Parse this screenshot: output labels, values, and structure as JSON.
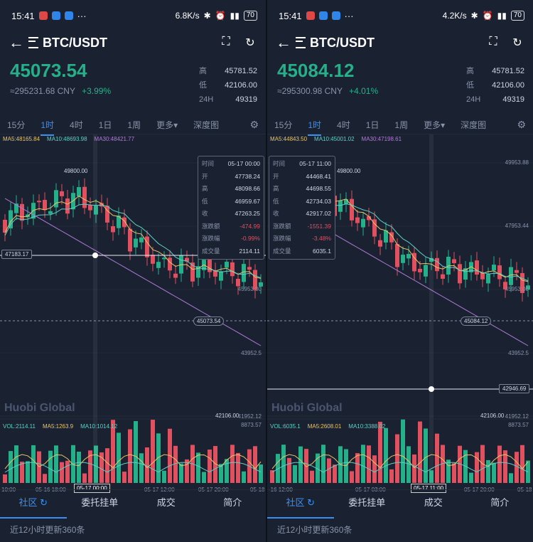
{
  "panels": [
    {
      "status": {
        "time": "15:41",
        "speed": "6.8K/s",
        "battery": "70"
      },
      "pair": "BTC/USDT",
      "price": "45073.54",
      "cny": "≈295231.68 CNY",
      "change": "+3.99%",
      "stats": [
        {
          "k": "高",
          "v": "45781.52"
        },
        {
          "k": "低",
          "v": "42106.00"
        },
        {
          "k": "24H",
          "v": "49319"
        }
      ],
      "tabs": [
        "15分",
        "1时",
        "4时",
        "1日",
        "1周",
        "更多▾",
        "深度图"
      ],
      "ma": {
        "ma5": "MA5:48165.84",
        "ma10": "MA10:48693.98",
        "ma30": "MA30:48421.77"
      },
      "vol": {
        "vol": "VOL:2114.11",
        "ma5": "MA5:1263.9",
        "ma10": "MA10:1014.12"
      },
      "tooltip": [
        {
          "k": "时间",
          "v": "05-17 00:00"
        },
        {
          "k": "开",
          "v": "47738.24"
        },
        {
          "k": "高",
          "v": "48098.66"
        },
        {
          "k": "低",
          "v": "46959.67"
        },
        {
          "k": "收",
          "v": "47263.25"
        },
        {
          "k": "涨跌额",
          "v": "-474.99"
        },
        {
          "k": "涨跌幅",
          "v": "-0.99%"
        },
        {
          "k": "成交量",
          "v": "2114.11"
        }
      ],
      "high_label": "49800.00",
      "low_label": "42106.00",
      "cross_price": "47183.17",
      "current_price": "45073.54",
      "yticks": [
        "45953.00",
        "43952.5",
        "41952.12"
      ],
      "vol_max": "8873.57",
      "xticks": [
        "10:00",
        "05-16 18:00",
        "05-17 12:00",
        "05-17 20:00",
        "05-18"
      ],
      "x_highlight": "05-17 00:00",
      "watermark": "Huobi Global",
      "nav": [
        "社区 ↻",
        "委托挂单",
        "成交",
        "简介"
      ],
      "footer": "近12小时更新360条"
    },
    {
      "status": {
        "time": "15:41",
        "speed": "4.2K/s",
        "battery": "70"
      },
      "pair": "BTC/USDT",
      "price": "45084.12",
      "cny": "≈295300.98 CNY",
      "change": "+4.01%",
      "stats": [
        {
          "k": "高",
          "v": "45781.52"
        },
        {
          "k": "低",
          "v": "42106.00"
        },
        {
          "k": "24H",
          "v": "49319"
        }
      ],
      "tabs": [
        "15分",
        "1时",
        "4时",
        "1日",
        "1周",
        "更多▾",
        "深度图"
      ],
      "ma": {
        "ma5": "MA5:44843.50",
        "ma10": "MA10:45001.02",
        "ma30": "MA30:47198.61"
      },
      "vol": {
        "vol": "VOL:6035.1",
        "ma5": "MA5:2608.01",
        "ma10": "MA10:3388.02"
      },
      "tooltip": [
        {
          "k": "时间",
          "v": "05-17 11:00"
        },
        {
          "k": "开",
          "v": "44468.41"
        },
        {
          "k": "高",
          "v": "44698.55"
        },
        {
          "k": "低",
          "v": "42734.03"
        },
        {
          "k": "收",
          "v": "42917.02"
        },
        {
          "k": "涨跌额",
          "v": "-1551.39"
        },
        {
          "k": "涨跌幅",
          "v": "-3.48%"
        },
        {
          "k": "成交量",
          "v": "6035.1"
        }
      ],
      "high_label": "49800.00",
      "low_label": "42106.00",
      "cross_price": "42946.69",
      "current_price": "45084.12",
      "yticks": [
        "49953.88",
        "47953.44",
        "45953.00",
        "43952.5",
        "41952.12"
      ],
      "vol_max": "8873.57",
      "xticks": [
        "-16 12:00",
        "05-17 03:00",
        "05-17 20:00",
        "05-18"
      ],
      "x_highlight": "05-17 11:00",
      "watermark": "Huobi Global",
      "nav": [
        "社区 ↻",
        "委托挂单",
        "成交",
        "简介"
      ],
      "footer": "近12小时更新360条"
    }
  ],
  "colors": {
    "up": "#26b089",
    "down": "#e0505f",
    "ma5": "#e8c46a",
    "ma10": "#5fd0c4",
    "ma30": "#b27ad6",
    "accent": "#3b8ff0"
  }
}
